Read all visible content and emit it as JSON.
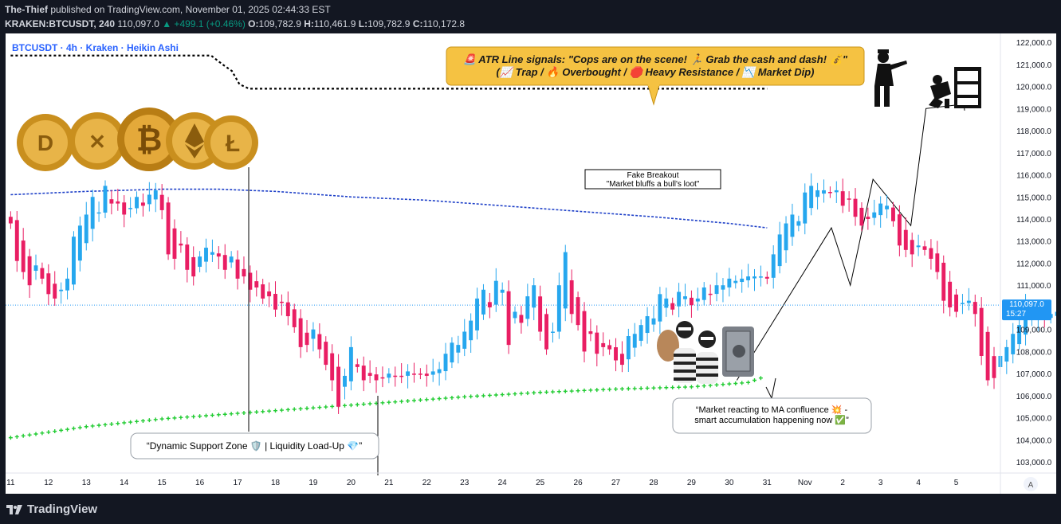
{
  "header": {
    "author": "The-Thief",
    "published_text": "published on TradingView.com, November 01, 2025 02:44:33 EST",
    "symbol": "KRAKEN:BTCUSDT",
    "interval": "240",
    "last": "110,097.0",
    "change": "▲ +499.1 (+0.46%)",
    "o_label": "O:",
    "o": "109,782.9",
    "h_label": "H:",
    "h": "110,461.9",
    "l_label": "L:",
    "l": "109,782.9",
    "c_label": "C:",
    "c": "110,172.8"
  },
  "chart_title": "BTCUSDT · 4h · Kraken · Heikin Ashi",
  "price_tag": {
    "value": "110,097.0",
    "countdown": "15:27"
  },
  "annotations": {
    "atr_line1": "🚨 ATR Line signals: \"Cops are on the scene! 🏃 Grab the cash and dash! 💰\"",
    "atr_line2": "(📈 Trap / 🔥 Overbought / 🛑 Heavy Resistance / 📉 Market Dip)",
    "fake_breakout_1": "Fake Breakout",
    "fake_breakout_2": "\"Market bluffs a bull's loot\"",
    "support_zone": "“Dynamic Support Zone 🛡️ | Liquidity Load-Up 💎”",
    "ma_confluence_1": "“Market reacting to MA confluence 💥 -",
    "ma_confluence_2": "smart accumulation happening now ✅”"
  },
  "footer": {
    "logo": "TradingView",
    "auto_btn": "A"
  },
  "colors": {
    "up": "#26a7ee",
    "down": "#e91e63",
    "ma_slow": "#1e40c8",
    "ma_support": "#22cc33",
    "accent_box": "#f5c242"
  },
  "chart_data": {
    "type": "candlestick",
    "title": "BTCUSDT · 4h · Kraken · Heikin Ashi",
    "y_ticks": [
      103000,
      104000,
      105000,
      106000,
      107000,
      108000,
      109000,
      110000,
      111000,
      112000,
      113000,
      114000,
      115000,
      116000,
      117000,
      118000,
      119000,
      120000,
      121000,
      122000
    ],
    "ylim": [
      102500,
      122400
    ],
    "x_ticks": [
      "11",
      "12",
      "13",
      "14",
      "15",
      "16",
      "17",
      "18",
      "19",
      "20",
      "21",
      "22",
      "23",
      "24",
      "25",
      "26",
      "27",
      "28",
      "29",
      "30",
      "31",
      "Nov",
      "2",
      "3",
      "4",
      "5"
    ],
    "x_tick_dates": [
      11,
      12,
      13,
      14,
      15,
      16,
      17,
      18,
      19,
      20,
      21,
      22,
      23,
      24,
      25,
      26,
      27,
      28,
      29,
      30,
      31,
      32,
      33,
      34,
      35,
      36
    ],
    "xlim": [
      10.95,
      37.0
    ],
    "candles_per_day": 6,
    "first_candle_date": 11.0,
    "closes": [
      113800,
      112100,
      111600,
      111000,
      111900,
      111300,
      110600,
      110400,
      110800,
      111300,
      113200,
      113700,
      114200,
      115000,
      114300,
      115500,
      114700,
      114700,
      114200,
      114500,
      115000,
      114600,
      115100,
      115300,
      114400,
      112400,
      112200,
      112800,
      111700,
      111400,
      112300,
      112700,
      112500,
      112300,
      111700,
      112300,
      111300,
      111400,
      110800,
      110900,
      110400,
      110500,
      109900,
      110200,
      109600,
      109100,
      108200,
      108300,
      109000,
      108100,
      107400,
      106700,
      105500,
      106900,
      108200,
      107300,
      106700,
      106900,
      106700,
      106800,
      107000,
      106900,
      106900,
      107100,
      107000,
      107000,
      106900,
      107100,
      107200,
      107900,
      108400,
      108300,
      108900,
      109400,
      110400,
      110800,
      110000,
      111200,
      110800,
      108300,
      109800,
      109300,
      110500,
      111000,
      108900,
      108100,
      108900,
      111000,
      112500,
      109700,
      109200,
      108000,
      108800,
      107900,
      108200,
      108100,
      107600,
      107400,
      108700,
      108800,
      109200,
      109600,
      109500,
      110600,
      110400,
      109900,
      110700,
      110500,
      110100,
      110400,
      110900,
      110600,
      111000,
      111000,
      111300,
      111200,
      111300,
      111400,
      111400,
      111400,
      111300,
      112400,
      113300,
      113800,
      114200,
      113900,
      115200,
      115500,
      115300,
      115300,
      115200,
      115300,
      114600,
      114900,
      114100,
      113700,
      114000,
      114300,
      114700,
      114600,
      113900,
      112800,
      112600,
      112400,
      112800,
      112600,
      112200,
      111600,
      110300,
      110000,
      109800,
      110200,
      110300,
      109700,
      107800,
      106700,
      106800,
      107800,
      108200,
      108800,
      109200,
      110200,
      109500,
      109600,
      109500,
      109700,
      109800,
      110100
    ],
    "atr_line": {
      "x": [
        11.0,
        16.3,
        16.6,
        16.85,
        17.05,
        17.3,
        27.4
      ],
      "y": [
        121400,
        121400,
        121000,
        120700,
        120100,
        119900,
        119900
      ],
      "end": 31.0
    },
    "ma_slow": {
      "x": [
        11.0,
        13.0,
        15.0,
        16.5,
        18.0,
        20.0,
        22.0,
        24.0,
        26.0,
        28.0,
        30.0,
        31.0
      ],
      "y": [
        115100,
        115250,
        115350,
        115350,
        115250,
        115000,
        114850,
        114600,
        114350,
        114100,
        113800,
        113600
      ]
    },
    "ma_support": {
      "x": [
        11.0,
        13.0,
        15.0,
        17.0,
        19.0,
        21.0,
        23.0,
        25.0,
        27.0,
        29.0,
        30.5,
        31.0
      ],
      "y": [
        104100,
        104600,
        104950,
        105200,
        105450,
        105700,
        105950,
        106150,
        106300,
        106400,
        106600,
        106900
      ]
    },
    "projection": {
      "x": [
        30.2,
        32.7,
        33.2,
        33.8,
        34.8,
        35.2,
        36.2
      ],
      "y": [
        106700,
        113600,
        111000,
        115800,
        113700,
        119000,
        119200
      ]
    }
  }
}
